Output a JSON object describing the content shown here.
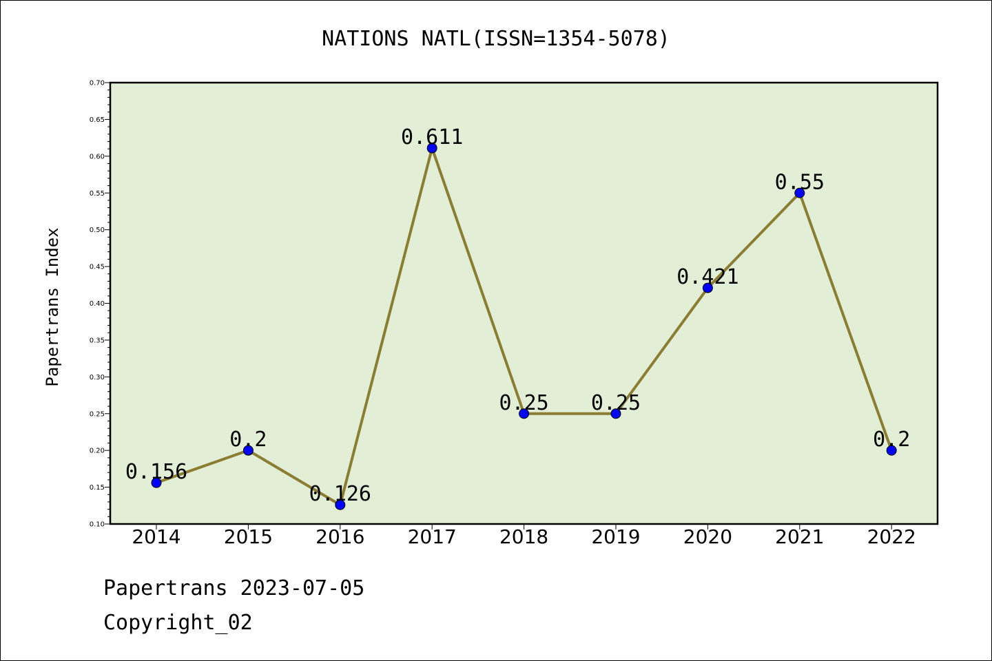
{
  "chart_data": {
    "type": "line",
    "title": "NATIONS NATL(ISSN=1354-5078)",
    "ylabel": "Papertrans Index",
    "xlabel": "",
    "x": [
      "2014",
      "2015",
      "2016",
      "2017",
      "2018",
      "2019",
      "2020",
      "2021",
      "2022"
    ],
    "values": [
      0.156,
      0.2,
      0.126,
      0.611,
      0.25,
      0.25,
      0.421,
      0.55,
      0.2
    ],
    "data_labels": [
      "0.156",
      "0.2",
      "0.126",
      "0.611",
      "0.25",
      "0.25",
      "0.421",
      "0.55",
      "0.2"
    ],
    "ylim": [
      0.1,
      0.7
    ],
    "yticks": [
      "0.10",
      "0.15",
      "0.20",
      "0.25",
      "0.30",
      "0.35",
      "0.40",
      "0.45",
      "0.50",
      "0.55",
      "0.60",
      "0.65",
      "0.70"
    ],
    "grid": false,
    "legend": "none",
    "colors": {
      "plot_background": "#e2efd6",
      "line": "#8b7d32",
      "marker": "#0000ff"
    }
  },
  "footer": {
    "line1": "Papertrans 2023-07-05",
    "line2": "Copyright_02"
  }
}
